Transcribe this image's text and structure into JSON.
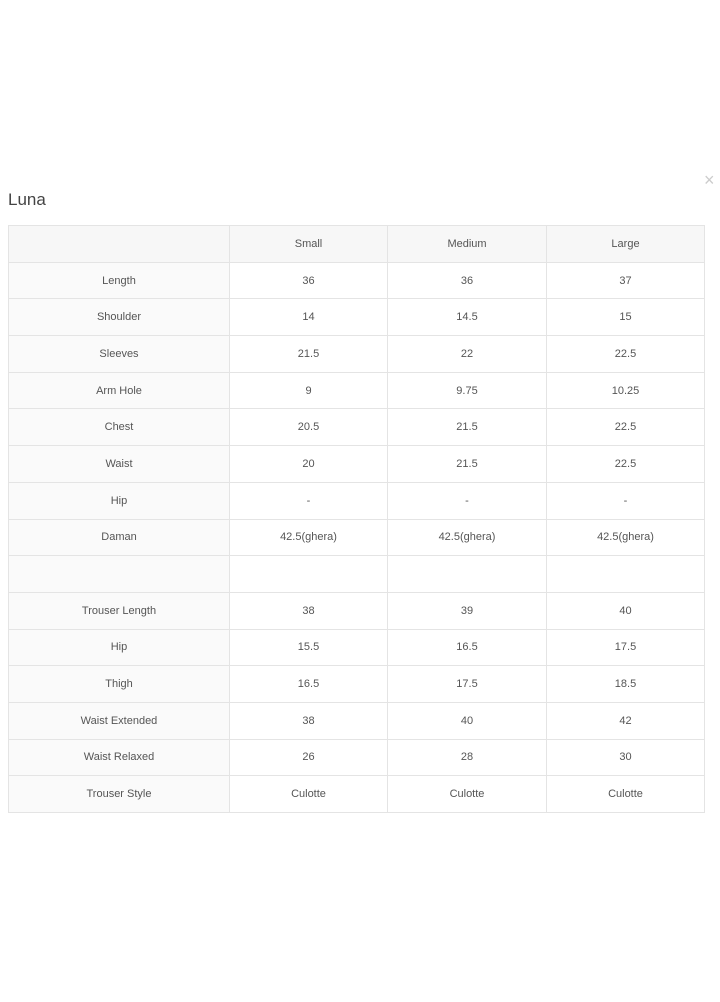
{
  "modal": {
    "title": "Luna",
    "close_icon": "close-icon",
    "close_label": "×"
  },
  "table": {
    "headers": [
      "",
      "Small",
      "Medium",
      "Large"
    ],
    "rows": [
      [
        "Length",
        "36",
        "36",
        "37"
      ],
      [
        "Shoulder",
        "14",
        "14.5",
        "15"
      ],
      [
        "Sleeves",
        "21.5",
        "22",
        "22.5"
      ],
      [
        "Arm Hole",
        "9",
        "9.75",
        "10.25"
      ],
      [
        "Chest",
        "20.5",
        "21.5",
        "22.5"
      ],
      [
        "Waist",
        "20",
        "21.5",
        "22.5"
      ],
      [
        "Hip",
        "-",
        "-",
        "-"
      ],
      [
        "Daman",
        "42.5(ghera)",
        "42.5(ghera)",
        "42.5(ghera)"
      ],
      [
        "",
        "",
        "",
        ""
      ],
      [
        "Trouser Length",
        "38",
        "39",
        "40"
      ],
      [
        "Hip",
        "15.5",
        "16.5",
        "17.5"
      ],
      [
        "Thigh",
        "16.5",
        "17.5",
        "18.5"
      ],
      [
        "Waist Extended",
        "38",
        "40",
        "42"
      ],
      [
        "Waist Relaxed",
        "26",
        "28",
        "30"
      ],
      [
        "Trouser Style",
        "Culotte",
        "Culotte",
        "Culotte"
      ]
    ]
  }
}
